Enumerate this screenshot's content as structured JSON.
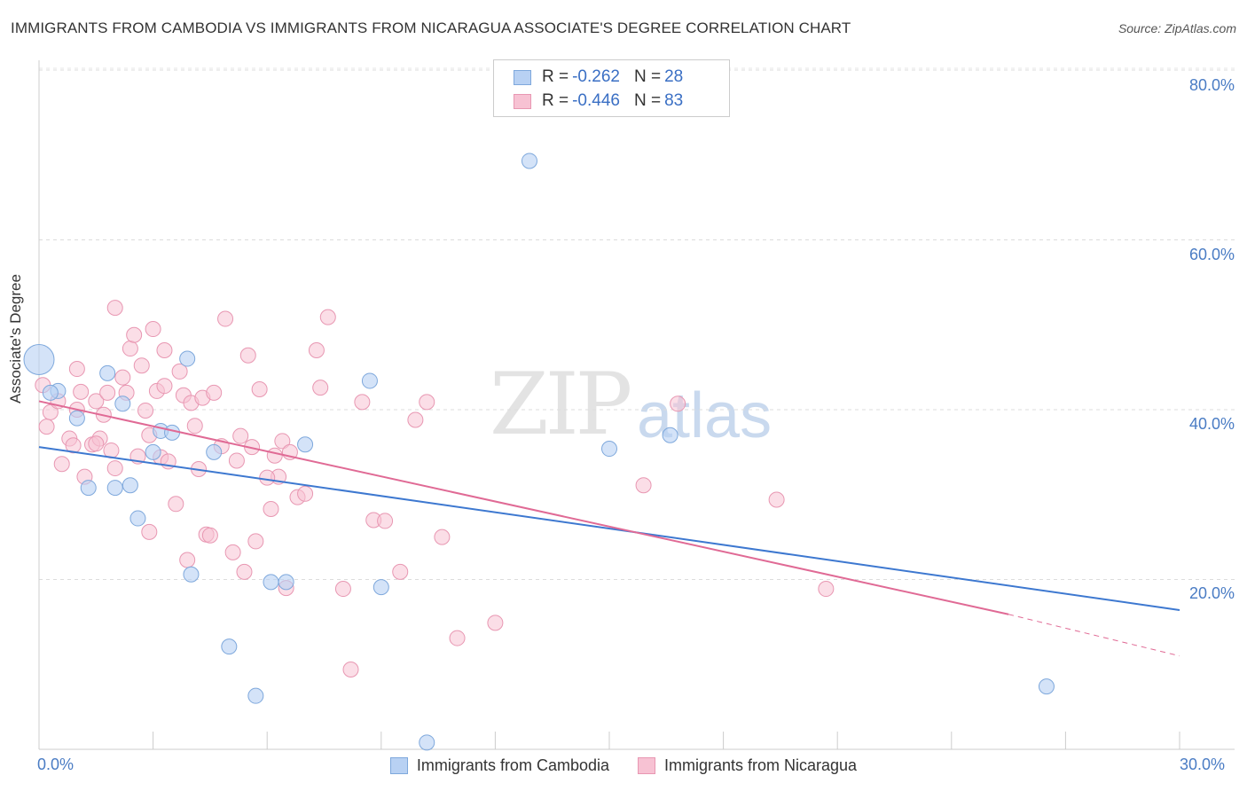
{
  "title": "IMMIGRANTS FROM CAMBODIA VS IMMIGRANTS FROM NICARAGUA ASSOCIATE'S DEGREE CORRELATION CHART",
  "source": "Source: ZipAtlas.com",
  "watermark": {
    "zip": "ZIP",
    "atlas": "atlas"
  },
  "legend": {
    "cambodia": {
      "r_label": "R =",
      "r_value": "-0.262",
      "n_label": "N =",
      "n_value": "28"
    },
    "nicaragua": {
      "r_label": "R =",
      "r_value": "-0.446",
      "n_label": "N =",
      "n_value": "83"
    }
  },
  "colors": {
    "cambodia_fill": "#b8d1f3",
    "cambodia_stroke": "#7ea8dc",
    "cambodia_line": "#3d78d0",
    "nicaragua_fill": "#f7c2d3",
    "nicaragua_stroke": "#e897b2",
    "nicaragua_line": "#e06a95",
    "tick_label": "#4a7cc4"
  },
  "chart_data": {
    "type": "scatter",
    "xlabel": "",
    "ylabel": "Associate's Degree",
    "xlim": [
      0,
      30
    ],
    "ylim": [
      0,
      80
    ],
    "x_tick_labels": [
      "0.0%",
      "30.0%"
    ],
    "y_ticks": [
      20,
      40,
      60,
      80
    ],
    "y_tick_labels": [
      "20.0%",
      "40.0%",
      "60.0%",
      "80.0%"
    ],
    "grid": "horizontal dashed",
    "legend_position": "top-center",
    "series": [
      {
        "name": "Immigrants from Cambodia",
        "points": [
          [
            0.0,
            45.9
          ],
          [
            0.5,
            42.2
          ],
          [
            1.0,
            39.0
          ],
          [
            1.3,
            30.8
          ],
          [
            1.8,
            44.3
          ],
          [
            2.2,
            40.7
          ],
          [
            2.0,
            30.8
          ],
          [
            2.4,
            31.1
          ],
          [
            2.6,
            27.2
          ],
          [
            3.0,
            35.0
          ],
          [
            3.2,
            37.5
          ],
          [
            3.5,
            37.3
          ],
          [
            3.9,
            46.0
          ],
          [
            4.0,
            20.6
          ],
          [
            4.6,
            35.0
          ],
          [
            5.0,
            12.1
          ],
          [
            5.7,
            6.3
          ],
          [
            6.1,
            19.7
          ],
          [
            6.5,
            19.7
          ],
          [
            7.0,
            35.9
          ],
          [
            8.7,
            43.4
          ],
          [
            9.0,
            19.1
          ],
          [
            10.2,
            0.8
          ],
          [
            12.9,
            69.3
          ],
          [
            15.0,
            35.4
          ],
          [
            16.6,
            37.0
          ],
          [
            26.5,
            7.4
          ],
          [
            0.3,
            42.0
          ]
        ],
        "trend": {
          "x": [
            0,
            30
          ],
          "y": [
            35.6,
            16.4
          ]
        }
      },
      {
        "name": "Immigrants from Nicaragua",
        "points": [
          [
            0.1,
            42.9
          ],
          [
            0.3,
            39.7
          ],
          [
            0.5,
            41.0
          ],
          [
            0.6,
            33.6
          ],
          [
            0.8,
            36.6
          ],
          [
            1.0,
            44.8
          ],
          [
            1.1,
            42.1
          ],
          [
            1.2,
            32.1
          ],
          [
            1.4,
            35.9
          ],
          [
            1.5,
            41.0
          ],
          [
            1.6,
            36.6
          ],
          [
            1.7,
            39.4
          ],
          [
            1.8,
            42.0
          ],
          [
            1.9,
            35.2
          ],
          [
            2.0,
            52.0
          ],
          [
            2.0,
            33.1
          ],
          [
            2.2,
            43.8
          ],
          [
            2.3,
            42.0
          ],
          [
            2.4,
            47.2
          ],
          [
            2.5,
            48.8
          ],
          [
            2.6,
            34.5
          ],
          [
            2.7,
            45.2
          ],
          [
            2.8,
            39.9
          ],
          [
            2.9,
            25.6
          ],
          [
            3.0,
            49.5
          ],
          [
            3.1,
            42.2
          ],
          [
            3.2,
            34.4
          ],
          [
            3.3,
            42.8
          ],
          [
            3.4,
            33.9
          ],
          [
            3.6,
            28.9
          ],
          [
            3.7,
            44.5
          ],
          [
            3.8,
            41.7
          ],
          [
            3.9,
            22.3
          ],
          [
            4.0,
            40.8
          ],
          [
            4.1,
            38.1
          ],
          [
            4.3,
            41.4
          ],
          [
            4.4,
            25.3
          ],
          [
            4.5,
            25.2
          ],
          [
            4.6,
            42.0
          ],
          [
            4.8,
            35.7
          ],
          [
            4.9,
            50.7
          ],
          [
            5.1,
            23.2
          ],
          [
            5.2,
            34.0
          ],
          [
            5.3,
            36.9
          ],
          [
            5.4,
            20.9
          ],
          [
            5.5,
            46.4
          ],
          [
            5.6,
            35.6
          ],
          [
            5.7,
            24.5
          ],
          [
            5.8,
            42.4
          ],
          [
            6.1,
            28.3
          ],
          [
            6.2,
            34.6
          ],
          [
            6.3,
            32.1
          ],
          [
            6.4,
            36.3
          ],
          [
            6.5,
            19.0
          ],
          [
            6.6,
            35.0
          ],
          [
            6.8,
            29.7
          ],
          [
            7.0,
            30.1
          ],
          [
            7.3,
            47.0
          ],
          [
            7.4,
            42.6
          ],
          [
            7.6,
            50.9
          ],
          [
            8.0,
            18.9
          ],
          [
            8.2,
            9.4
          ],
          [
            8.5,
            40.9
          ],
          [
            8.8,
            27.0
          ],
          [
            9.1,
            26.9
          ],
          [
            9.5,
            20.9
          ],
          [
            9.9,
            38.8
          ],
          [
            10.2,
            40.9
          ],
          [
            10.6,
            25.0
          ],
          [
            11.0,
            13.1
          ],
          [
            12.0,
            14.9
          ],
          [
            15.9,
            31.1
          ],
          [
            16.8,
            40.7
          ],
          [
            19.4,
            29.4
          ],
          [
            20.7,
            18.9
          ],
          [
            1.0,
            40.0
          ],
          [
            2.9,
            37.0
          ],
          [
            0.9,
            35.8
          ],
          [
            3.3,
            47.0
          ],
          [
            1.5,
            36.0
          ],
          [
            6.0,
            32.0
          ],
          [
            4.2,
            33.0
          ],
          [
            0.2,
            38.0
          ]
        ],
        "trend": {
          "x": [
            0,
            25.5
          ],
          "y": [
            41.0,
            15.9
          ]
        },
        "trend_extension": {
          "x": [
            25.5,
            30
          ],
          "y": [
            15.9,
            11.0
          ]
        }
      }
    ]
  },
  "bottom_legend": {
    "cambodia_label": "Immigrants from Cambodia",
    "nicaragua_label": "Immigrants from Nicaragua"
  }
}
